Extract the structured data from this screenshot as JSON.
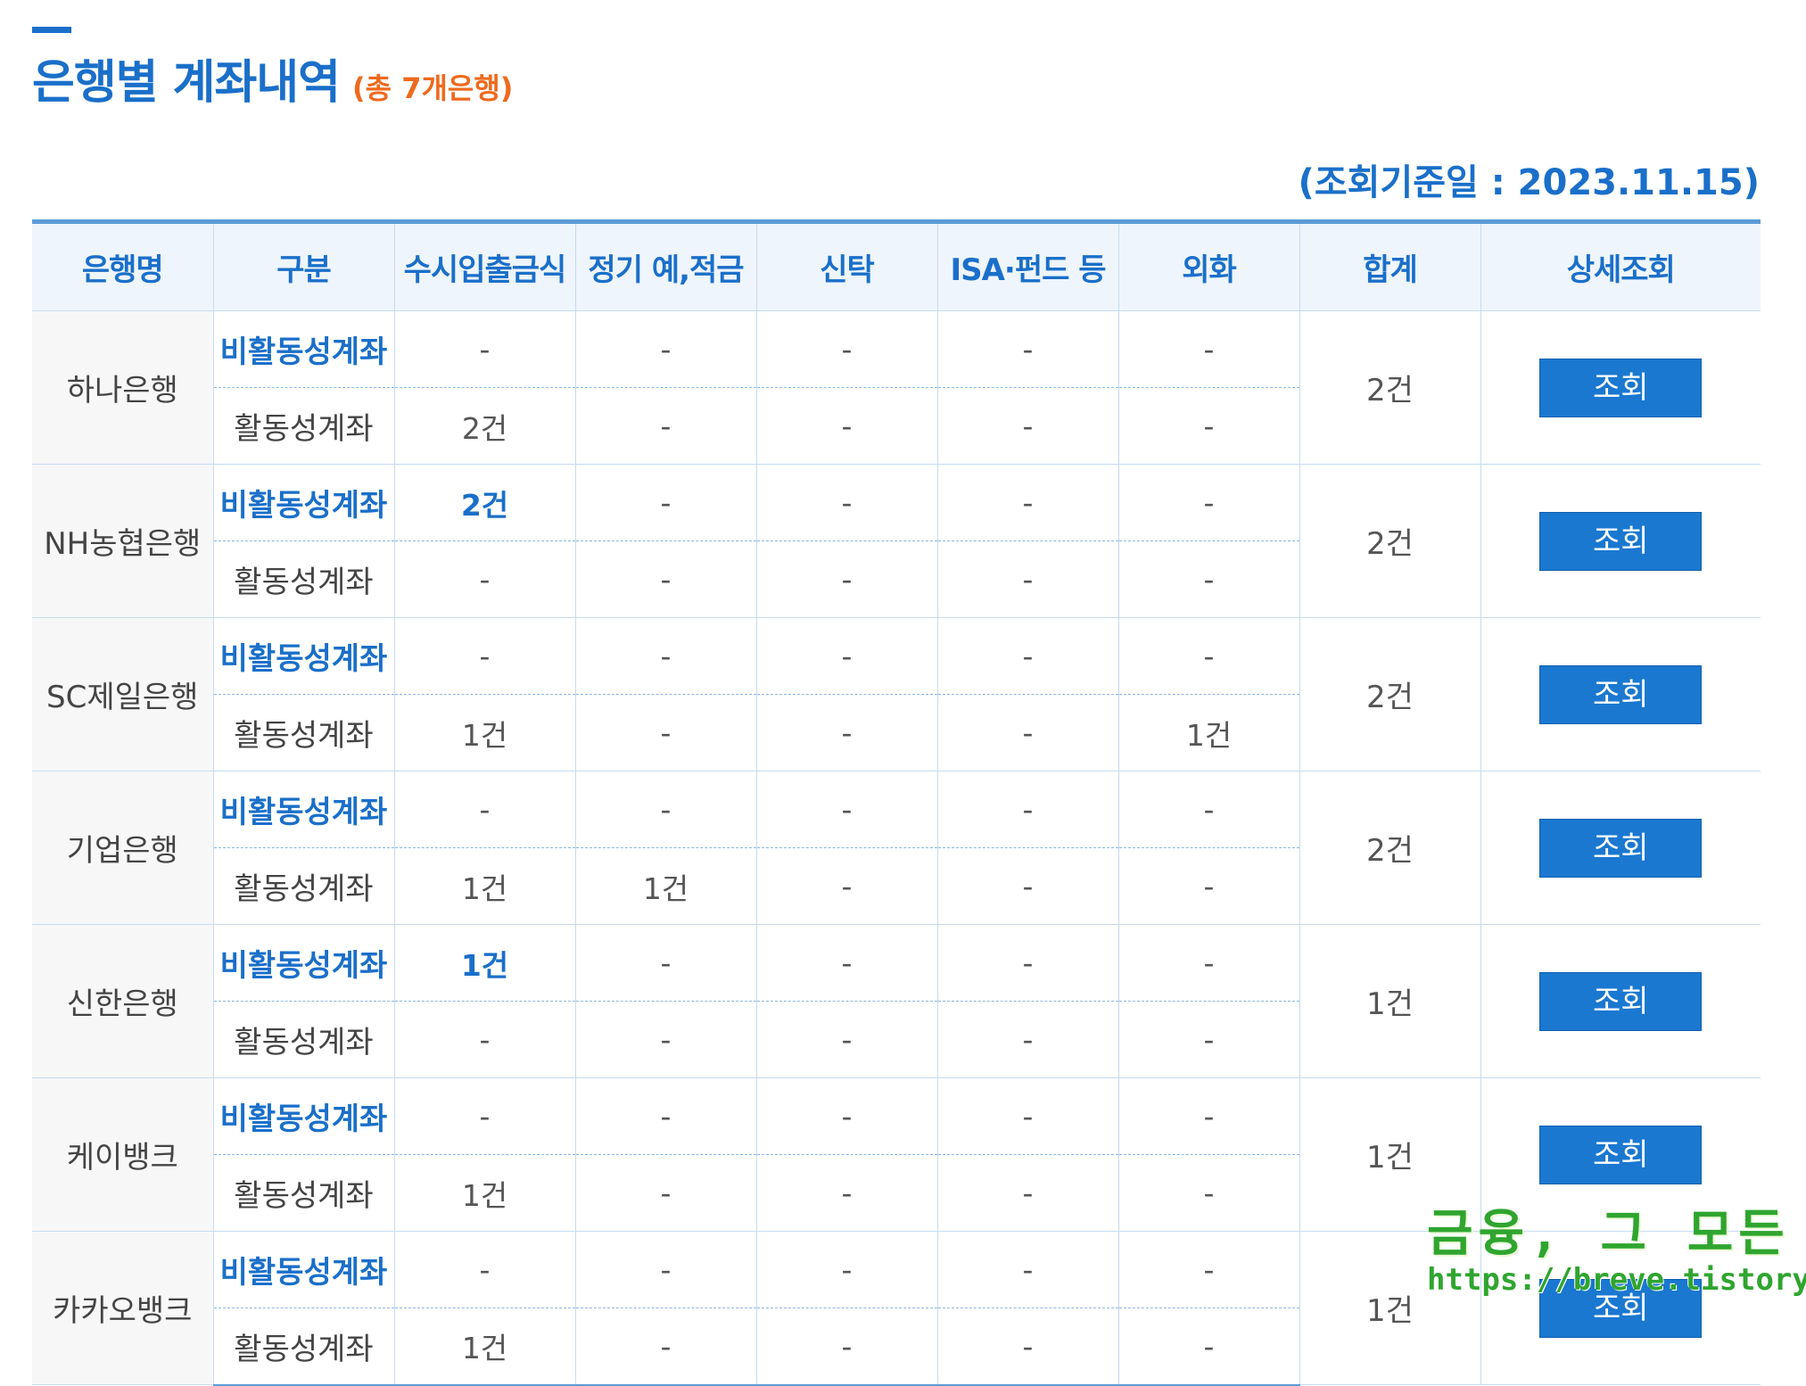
{
  "header": {
    "title": "은행별 계좌내역",
    "count_text": "(총 7개은행)",
    "base_date": "(조회기준일 : 2023.11.15)"
  },
  "table": {
    "columns": [
      "은행명",
      "구분",
      "수시입출금식",
      "정기 예,적금",
      "신탁",
      "ISA·펀드 등",
      "외화",
      "합계",
      "상세조회"
    ],
    "banks": [
      {
        "name": "하나은행",
        "total": "2건",
        "button": "조회",
        "inactive": {
          "label": "비활동성계좌",
          "values": [
            "-",
            "-",
            "-",
            "-",
            "-"
          ]
        },
        "active": {
          "label": "활동성계좌",
          "values": [
            "2건",
            "-",
            "-",
            "-",
            "-"
          ]
        }
      },
      {
        "name": "NH농협은행",
        "total": "2건",
        "button": "조회",
        "inactive": {
          "label": "비활동성계좌",
          "values": [
            "2건",
            "-",
            "-",
            "-",
            "-"
          ]
        },
        "active": {
          "label": "활동성계좌",
          "values": [
            "-",
            "-",
            "-",
            "-",
            "-"
          ]
        }
      },
      {
        "name": "SC제일은행",
        "total": "2건",
        "button": "조회",
        "inactive": {
          "label": "비활동성계좌",
          "values": [
            "-",
            "-",
            "-",
            "-",
            "-"
          ]
        },
        "active": {
          "label": "활동성계좌",
          "values": [
            "1건",
            "-",
            "-",
            "-",
            "1건"
          ]
        }
      },
      {
        "name": "기업은행",
        "total": "2건",
        "button": "조회",
        "inactive": {
          "label": "비활동성계좌",
          "values": [
            "-",
            "-",
            "-",
            "-",
            "-"
          ]
        },
        "active": {
          "label": "활동성계좌",
          "values": [
            "1건",
            "1건",
            "-",
            "-",
            "-"
          ]
        }
      },
      {
        "name": "신한은행",
        "total": "1건",
        "button": "조회",
        "inactive": {
          "label": "비활동성계좌",
          "values": [
            "1건",
            "-",
            "-",
            "-",
            "-"
          ]
        },
        "active": {
          "label": "활동성계좌",
          "values": [
            "-",
            "-",
            "-",
            "-",
            "-"
          ]
        }
      },
      {
        "name": "케이뱅크",
        "total": "1건",
        "button": "조회",
        "inactive": {
          "label": "비활동성계좌",
          "values": [
            "-",
            "-",
            "-",
            "-",
            "-"
          ]
        },
        "active": {
          "label": "활동성계좌",
          "values": [
            "1건",
            "-",
            "-",
            "-",
            "-"
          ]
        }
      },
      {
        "name": "카카오뱅크",
        "total": "1건",
        "button": "조회",
        "inactive": {
          "label": "비활동성계좌",
          "values": [
            "-",
            "-",
            "-",
            "-",
            "-"
          ]
        },
        "active": {
          "label": "활동성계좌",
          "values": [
            "1건",
            "-",
            "-",
            "-",
            "-"
          ]
        }
      }
    ]
  },
  "watermark": {
    "title": "금융, 그 모든 것",
    "url": "https://breve.tistory.com"
  },
  "colors": {
    "accent": "#1a6fc9",
    "count": "#ee6a1e",
    "button": "#1a78d0",
    "watermark": "#2fa52f"
  }
}
